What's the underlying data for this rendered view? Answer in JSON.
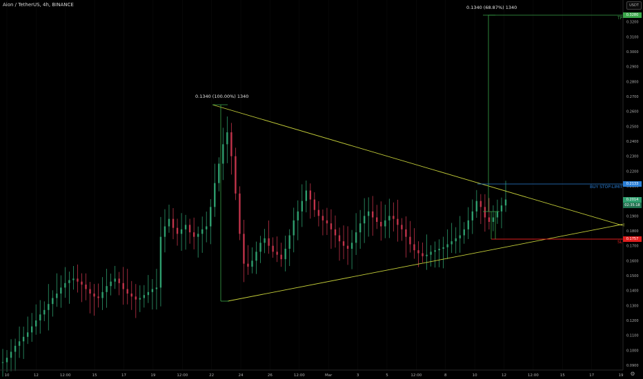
{
  "header": {
    "symbol_title": "Aion / TetherUS, 4h, BINANCE",
    "currency": "USDT"
  },
  "price_axis": {
    "labels": [
      "0.3300",
      "0.3200",
      "0.3100",
      "0.3000",
      "0.2900",
      "0.2800",
      "0.2700",
      "0.2600",
      "0.2500",
      "0.2400",
      "0.2300",
      "0.2200",
      "0.2100",
      "0.2000",
      "0.1900",
      "0.1800",
      "0.1700",
      "0.1600",
      "0.1500",
      "0.1400",
      "0.1300",
      "0.1200",
      "0.1100",
      "0.1000",
      "0.0900"
    ],
    "min": 0.09,
    "max": 0.33
  },
  "time_axis": {
    "labels": [
      "10",
      "12",
      "12:00",
      "15",
      "17",
      "19",
      "12:00",
      "22",
      "24",
      "26",
      "12:00",
      "Mar",
      "3",
      "5",
      "12:00",
      "8",
      "10",
      "12",
      "12:00",
      "15",
      "17",
      "19"
    ]
  },
  "annotations": {
    "measure_1": "0.1340 (100.00%) 1340",
    "measure_2": "0.1340 (68.87%) 1340",
    "buy_stop_limit": "BUY STOP-LIMIT",
    "tp": "TP",
    "sl": "SL"
  },
  "price_tags": {
    "target": "0.3280",
    "entry": "0.2133",
    "current": "0.2014",
    "countdown": "02:35:18",
    "stop": "0.1757"
  },
  "colors": {
    "up": "#2e9e6e",
    "down": "#c2334a",
    "wedge": "#c8d23a",
    "measure": "#3aa64a",
    "entry_line": "#2b7fd6",
    "stop_line": "#e01e1e",
    "background": "#000000"
  },
  "chart_data": {
    "type": "candlestick",
    "series": [
      {
        "name": "AIONUSDT",
        "values": [
          0.092,
          0.095,
          0.099,
          0.103,
          0.106,
          0.109,
          0.112,
          0.116,
          0.12,
          0.124,
          0.127,
          0.131,
          0.135,
          0.138,
          0.142,
          0.145,
          0.147,
          0.148,
          0.146,
          0.144,
          0.141,
          0.138,
          0.136,
          0.135,
          0.139,
          0.143,
          0.146,
          0.148,
          0.145,
          0.141,
          0.138,
          0.136,
          0.134,
          0.135,
          0.137,
          0.139,
          0.141,
          0.142,
          0.176,
          0.183,
          0.188,
          0.182,
          0.178,
          0.181,
          0.184,
          0.179,
          0.176,
          0.178,
          0.181,
          0.183,
          0.196,
          0.212,
          0.225,
          0.238,
          0.246,
          0.23,
          0.205,
          0.178,
          0.158,
          0.156,
          0.16,
          0.166,
          0.172,
          0.175,
          0.17,
          0.166,
          0.164,
          0.161,
          0.168,
          0.177,
          0.187,
          0.193,
          0.2,
          0.207,
          0.201,
          0.194,
          0.19,
          0.187,
          0.185,
          0.181,
          0.177,
          0.173,
          0.17,
          0.168,
          0.172,
          0.179,
          0.185,
          0.19,
          0.193,
          0.189,
          0.186,
          0.183,
          0.187,
          0.19,
          0.188,
          0.184,
          0.181,
          0.176,
          0.171,
          0.167,
          0.165,
          0.163,
          0.164,
          0.166,
          0.167,
          0.168,
          0.169,
          0.171,
          0.173,
          0.175,
          0.177,
          0.181,
          0.187,
          0.193,
          0.2,
          0.196,
          0.189,
          0.186,
          0.189,
          0.193,
          0.197,
          0.201
        ]
      }
    ],
    "x_range": [
      "10 Feb",
      "19 Mar"
    ],
    "ylim": [
      0.09,
      0.33
    ],
    "levels": {
      "target": 0.328,
      "entry": 0.2133,
      "stop": 0.1757,
      "wedge_high": 0.268,
      "wedge_low": 0.134
    }
  }
}
